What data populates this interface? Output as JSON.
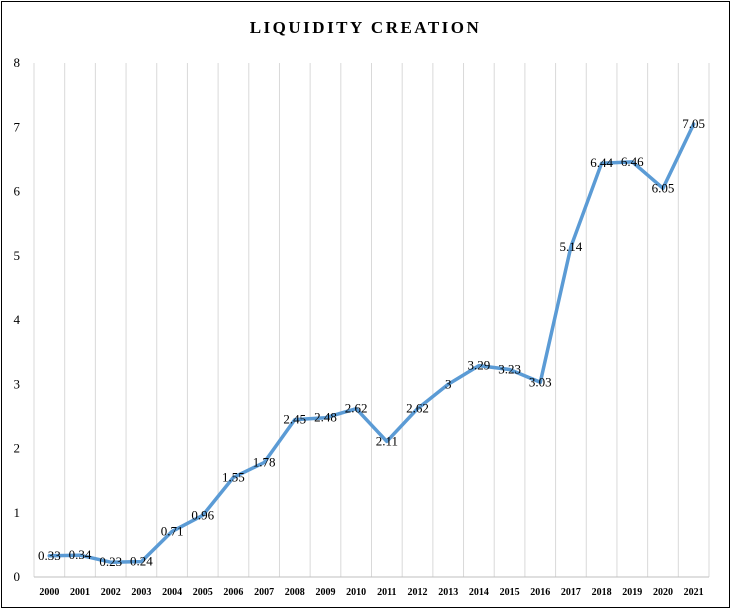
{
  "chart_data": {
    "type": "line",
    "title": "LIQUIDITY CREATION",
    "xlabel": "",
    "ylabel": "",
    "categories": [
      "2000",
      "2001",
      "2002",
      "2003",
      "2004",
      "2005",
      "2006",
      "2007",
      "2008",
      "2009",
      "2010",
      "2011",
      "2012",
      "2013",
      "2014",
      "2015",
      "2016",
      "2017",
      "2018",
      "2019",
      "2020",
      "2021"
    ],
    "series": [
      {
        "values": [
          0.33,
          0.34,
          0.23,
          0.24,
          0.71,
          0.96,
          1.55,
          1.78,
          2.45,
          2.48,
          2.62,
          2.11,
          2.62,
          3,
          3.29,
          3.23,
          3.03,
          5.14,
          6.44,
          6.46,
          6.05,
          7.05
        ],
        "labels": [
          "0.33",
          "0.34",
          "0.23",
          "0.24",
          "0.71",
          "0.96",
          "1.55",
          "1.78",
          "2.45",
          "2.48",
          "2.62",
          "2.11",
          "2.62",
          "3",
          "3.29",
          "3.23",
          "3.03",
          "5.14",
          "6.44",
          "6.46",
          "6.05",
          "7.05"
        ]
      }
    ],
    "y_ticks": [
      "0",
      "1",
      "2",
      "3",
      "4",
      "5",
      "6",
      "7",
      "8"
    ],
    "ylim": [
      0,
      8
    ],
    "grid": "vertical",
    "legend": "none",
    "colors": {
      "line": "#5b9bd5",
      "grid": "#d9d9d9",
      "axis": "#bfbfbf",
      "text": "#000000"
    }
  }
}
